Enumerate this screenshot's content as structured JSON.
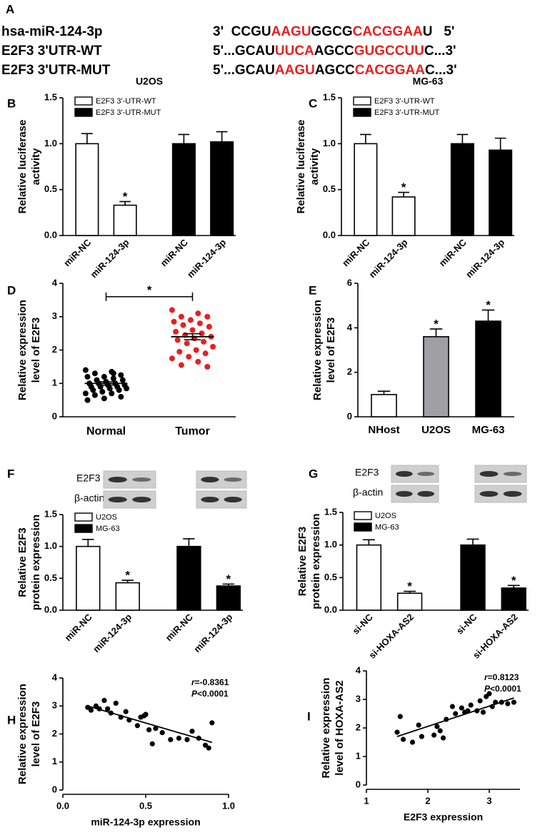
{
  "panel_a": {
    "panel": "A",
    "rows": [
      {
        "label": "hsa-miR-124-3p",
        "segments": [
          {
            "text": "3'  CCGU",
            "color": "#000000"
          },
          {
            "text": "AAGU",
            "color": "#e8201f"
          },
          {
            "text": "GGCG",
            "color": "#000000"
          },
          {
            "text": "CACGGAA",
            "color": "#e8201f"
          },
          {
            "text": "U   5'",
            "color": "#000000"
          }
        ]
      },
      {
        "label": "E2F3 3'UTR-WT",
        "segments": [
          {
            "text": "5'...GCAU",
            "color": "#000000"
          },
          {
            "text": "UUCA",
            "color": "#e8201f"
          },
          {
            "text": "AGCC",
            "color": "#000000"
          },
          {
            "text": "GUGCCUU",
            "color": "#e8201f"
          },
          {
            "text": "C...3'",
            "color": "#000000"
          }
        ]
      },
      {
        "label": "E2F3 3'UTR-MUT",
        "segments": [
          {
            "text": "5'...GCAU",
            "color": "#000000"
          },
          {
            "text": "AAGU",
            "color": "#e8201f"
          },
          {
            "text": "AGCC",
            "color": "#000000"
          },
          {
            "text": "CACGGAA",
            "color": "#e8201f"
          },
          {
            "text": "C...3'",
            "color": "#000000"
          }
        ]
      }
    ]
  },
  "chart_data": [
    {
      "type": "bar",
      "panel": "B",
      "title": "U2OS",
      "ylabel": [
        "Relative  luciferase",
        "activity"
      ],
      "categories": [
        "miR-NC",
        "miR-124-3p",
        "miR-NC",
        "miR-124-3p"
      ],
      "series": [
        {
          "name": "E2F3 3'-UTR-WT",
          "color": "#ffffff",
          "values": [
            1.0,
            0.33,
            null,
            null
          ],
          "errors": [
            0.11,
            0.04,
            null,
            null
          ]
        },
        {
          "name": "E2F3 3'-UTR-MUT",
          "color": "#000000",
          "values": [
            null,
            null,
            1.0,
            1.02
          ],
          "errors": [
            null,
            null,
            0.1,
            0.11
          ]
        }
      ],
      "annotations": [
        {
          "text": "*",
          "category": 1
        }
      ],
      "ylim": [
        0,
        1.5
      ],
      "yticks": [
        {
          "value": 0,
          "label": "0.0"
        },
        {
          "value": 0.5,
          "label": "0.5"
        },
        {
          "value": 1,
          "label": "1.0"
        },
        {
          "value": 1.5,
          "label": "1.5"
        }
      ]
    },
    {
      "type": "bar",
      "panel": "C",
      "title": "MG-63",
      "ylabel": [
        "Relative  luciferase",
        "activity"
      ],
      "categories": [
        "miR-NC",
        "miR-124-3p",
        "miR-NC",
        "miR-124-3p"
      ],
      "series": [
        {
          "name": "E2F3 3'-UTR-WT",
          "color": "#ffffff",
          "values": [
            1.0,
            0.42,
            null,
            null
          ],
          "errors": [
            0.1,
            0.05,
            null,
            null
          ]
        },
        {
          "name": "E2F3 3'-UTR-MUT",
          "color": "#000000",
          "values": [
            null,
            null,
            1.0,
            0.93
          ],
          "errors": [
            null,
            null,
            0.1,
            0.13
          ]
        }
      ],
      "annotations": [
        {
          "text": "*",
          "category": 1
        }
      ],
      "ylim": [
        0,
        1.5
      ],
      "yticks": [
        {
          "value": 0,
          "label": "0.0"
        },
        {
          "value": 0.5,
          "label": "0.5"
        },
        {
          "value": 1,
          "label": "1.0"
        },
        {
          "value": 1.5,
          "label": "1.5"
        }
      ]
    },
    {
      "type": "dotplot",
      "panel": "D",
      "ylabel": [
        "Relative expression",
        "level of E2F3"
      ],
      "categories": [
        "Normal",
        "Tumor"
      ],
      "groups": [
        {
          "color": "#000000",
          "mean": 1.0,
          "sem": 0.05,
          "values": [
            1.4,
            1.35,
            1.3,
            1.25,
            1.2,
            1.2,
            1.15,
            1.1,
            1.1,
            1.05,
            1.0,
            1.0,
            1.0,
            0.95,
            0.95,
            0.9,
            0.9,
            0.9,
            0.85,
            0.85,
            0.8,
            0.8,
            0.75,
            0.7,
            0.7,
            0.65,
            0.6,
            0.55,
            0.5,
            1.3
          ]
        },
        {
          "color": "#e8201f",
          "mean": 2.4,
          "sem": 0.09,
          "values": [
            3.2,
            3.1,
            3.0,
            3.0,
            2.9,
            2.85,
            2.8,
            2.75,
            2.7,
            2.6,
            2.55,
            2.5,
            2.45,
            2.4,
            2.35,
            2.3,
            2.25,
            2.2,
            2.1,
            2.0,
            1.95,
            1.9,
            1.8,
            1.75,
            1.65,
            1.55,
            1.5
          ]
        }
      ],
      "bracket": {
        "text": "*",
        "y": 3.6
      },
      "ylim": [
        0,
        4
      ],
      "yticks": [
        0,
        1,
        2,
        3,
        4
      ]
    },
    {
      "type": "bar",
      "panel": "E",
      "ylabel": [
        "Relative expression",
        "level of E2F3"
      ],
      "categories": [
        "NHost",
        "U2OS",
        "MG-63"
      ],
      "values": [
        1.0,
        3.6,
        4.3
      ],
      "errors": [
        0.15,
        0.35,
        0.5
      ],
      "colors": [
        "#ffffff",
        "#a0a0a4",
        "#000000"
      ],
      "annotations": [
        {
          "text": "*",
          "category": 1
        },
        {
          "text": "*",
          "category": 2
        }
      ],
      "ylim": [
        0,
        6
      ],
      "yticks": [
        0,
        2,
        4,
        6
      ]
    },
    {
      "type": "bar",
      "panel": "F",
      "ylabel": [
        "Relative E2F3",
        "protein expression"
      ],
      "blot_labels": [
        "E2F3",
        "β-actin"
      ],
      "categories": [
        "miR-NC",
        "miR-124-3p",
        "miR-NC",
        "miR-124-3p"
      ],
      "series": [
        {
          "name": "U2OS",
          "color": "#ffffff",
          "values": [
            1.0,
            0.43,
            null,
            null
          ],
          "errors": [
            0.11,
            0.04,
            null,
            null
          ]
        },
        {
          "name": "MG-63",
          "color": "#000000",
          "values": [
            null,
            null,
            1.0,
            0.38
          ],
          "errors": [
            null,
            null,
            0.12,
            0.03
          ]
        }
      ],
      "annotations": [
        {
          "text": "*",
          "category": 1
        },
        {
          "text": "*",
          "category": 3
        }
      ],
      "ylim": [
        0,
        1.5
      ],
      "yticks": [
        {
          "value": 0,
          "label": "0.0"
        },
        {
          "value": 0.5,
          "label": "0.5"
        },
        {
          "value": 1,
          "label": "1.0"
        },
        {
          "value": 1.5,
          "label": "1.5"
        }
      ]
    },
    {
      "type": "bar",
      "panel": "G",
      "ylabel": [
        "Relative E2F3",
        "protein expression"
      ],
      "blot_labels": [
        "E2F3",
        "β-actin"
      ],
      "categories": [
        "si-NC",
        "si-HOXA-AS2",
        "si-NC",
        "si-HOXA-AS2"
      ],
      "series": [
        {
          "name": "U2OS",
          "color": "#ffffff",
          "values": [
            1.0,
            0.26,
            null,
            null
          ],
          "errors": [
            0.08,
            0.03,
            null,
            null
          ]
        },
        {
          "name": "MG-63",
          "color": "#000000",
          "values": [
            null,
            null,
            1.0,
            0.34
          ],
          "errors": [
            null,
            null,
            0.09,
            0.04
          ]
        }
      ],
      "annotations": [
        {
          "text": "*",
          "category": 1
        },
        {
          "text": "*",
          "category": 3
        }
      ],
      "ylim": [
        0,
        1.5
      ],
      "yticks": [
        {
          "value": 0,
          "label": "0.0"
        },
        {
          "value": 0.5,
          "label": "0.5"
        },
        {
          "value": 1,
          "label": "1.0"
        },
        {
          "value": 1.5,
          "label": "1.5"
        }
      ]
    },
    {
      "type": "scatter",
      "panel": "H",
      "xlabel": "miR-124-3p expression",
      "ylabel": [
        "Relative expression",
        "level of E2F3"
      ],
      "x": [
        0.15,
        0.17,
        0.2,
        0.22,
        0.25,
        0.27,
        0.29,
        0.32,
        0.35,
        0.38,
        0.4,
        0.45,
        0.47,
        0.49,
        0.5,
        0.52,
        0.54,
        0.56,
        0.6,
        0.65,
        0.7,
        0.75,
        0.78,
        0.82,
        0.86,
        0.88,
        0.9
      ],
      "values": [
        2.95,
        2.85,
        3.0,
        2.9,
        3.2,
        2.9,
        2.75,
        3.1,
        2.6,
        2.8,
        2.5,
        2.3,
        2.6,
        2.65,
        2.7,
        2.15,
        1.65,
        2.2,
        2.05,
        1.8,
        1.85,
        1.8,
        2.1,
        1.85,
        1.6,
        1.5,
        2.4
      ],
      "fit_line": {
        "x": [
          0.15,
          0.9
        ],
        "y": [
          3.0,
          1.7
        ]
      },
      "stats": [
        {
          "symbol": "r",
          "text": "=-0.8361"
        },
        {
          "symbol": "P",
          "text": "<0.0001"
        }
      ],
      "xlim": [
        0,
        1
      ],
      "xticks": [
        {
          "value": 0,
          "label": "0.0"
        },
        {
          "value": 0.5,
          "label": "0.5"
        },
        {
          "value": 1,
          "label": "1.0"
        }
      ],
      "ylim": [
        0,
        4
      ],
      "yticks": [
        0,
        1,
        2,
        3,
        4
      ]
    },
    {
      "type": "scatter",
      "panel": "I",
      "xlabel": "E2F3 expression",
      "ylabel": [
        "Relative expression",
        "level of HOXA-AS2"
      ],
      "x": [
        1.5,
        1.55,
        1.6,
        1.75,
        1.85,
        1.9,
        2.1,
        2.15,
        2.2,
        2.25,
        2.3,
        2.4,
        2.45,
        2.55,
        2.6,
        2.65,
        2.7,
        2.8,
        2.85,
        2.9,
        2.95,
        3.0,
        3.05,
        3.1,
        3.2,
        3.3,
        3.4
      ],
      "values": [
        1.85,
        2.4,
        1.6,
        1.5,
        2.1,
        1.7,
        1.75,
        2.05,
        1.9,
        1.65,
        2.3,
        2.75,
        2.5,
        2.7,
        2.55,
        2.6,
        2.8,
        2.6,
        2.95,
        2.55,
        3.1,
        3.2,
        2.75,
        2.9,
        2.9,
        2.85,
        2.9
      ],
      "fit_line": {
        "x": [
          1.5,
          3.4
        ],
        "y": [
          1.7,
          3.05
        ]
      },
      "stats": [
        {
          "symbol": "r",
          "text": "=0.8123"
        },
        {
          "symbol": "P",
          "text": "<0.0001"
        }
      ],
      "xlim": [
        1,
        3.5
      ],
      "xticks": [
        1,
        2,
        3
      ],
      "ylim": [
        0,
        4
      ],
      "yticks": [
        0,
        1,
        2,
        3,
        4
      ]
    }
  ]
}
